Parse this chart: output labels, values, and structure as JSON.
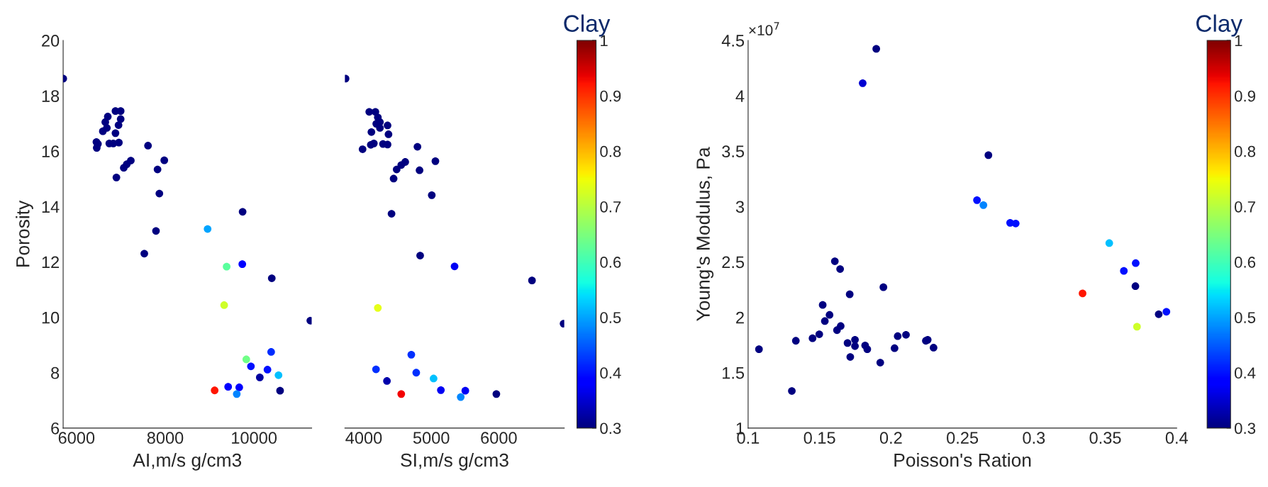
{
  "chart_data": [
    {
      "type": "scatter",
      "xlabel": "AI,m/s g/cm3",
      "ylabel": "Porosity",
      "xlim": [
        5700,
        11300
      ],
      "ylim": [
        6,
        20
      ],
      "xticks": [
        6000,
        8000,
        10000
      ],
      "yticks": [
        6,
        8,
        10,
        12,
        14,
        16,
        18,
        20
      ],
      "clim": [
        0.3,
        1
      ],
      "cticks": [
        0.3,
        0.4,
        0.5,
        0.6,
        0.7,
        0.8,
        0.9,
        1
      ],
      "clabel": "Clay",
      "grid": false,
      "marker": "circle",
      "x": [
        5702,
        6457,
        6484,
        6450,
        6706,
        6650,
        6685,
        6595,
        6879,
        6996,
        6996,
        6948,
        6879,
        6740,
        6830,
        6955,
        7066,
        7135,
        7225,
        6900,
        7612,
        7979,
        7827,
        7868,
        7792,
        7529,
        9744,
        8955,
        9384,
        9737,
        10401,
        9328,
        11270,
        9827,
        9931,
        10387,
        10304,
        10131,
        10553,
        10588,
        9114,
        9418,
        9668,
        9612
      ],
      "values": [
        18.62,
        16.12,
        16.26,
        16.33,
        17.25,
        17.05,
        16.84,
        16.72,
        17.45,
        17.45,
        17.16,
        16.94,
        16.65,
        16.28,
        16.28,
        16.31,
        15.4,
        15.53,
        15.66,
        15.05,
        16.2,
        15.67,
        15.34,
        14.47,
        13.12,
        12.3,
        13.81,
        13.19,
        11.83,
        11.92,
        11.41,
        10.44,
        9.88,
        8.48,
        8.23,
        8.75,
        8.11,
        7.83,
        7.91,
        7.35,
        7.36,
        7.49,
        7.47,
        7.23
      ],
      "cvalues": [
        0.3,
        0.3,
        0.3,
        0.3,
        0.3,
        0.3,
        0.3,
        0.3,
        0.3,
        0.3,
        0.3,
        0.3,
        0.3,
        0.3,
        0.3,
        0.3,
        0.3,
        0.3,
        0.3,
        0.3,
        0.3,
        0.3,
        0.3,
        0.3,
        0.3,
        0.3,
        0.3,
        0.5,
        0.62,
        0.38,
        0.3,
        0.72,
        0.3,
        0.64,
        0.4,
        0.42,
        0.4,
        0.32,
        0.52,
        0.3,
        0.92,
        0.38,
        0.38,
        0.48
      ]
    },
    {
      "type": "scatter",
      "xlabel": "SI,m/s g/cm3",
      "xlim": [
        3720,
        6970
      ],
      "ylim": [
        6,
        20
      ],
      "xticks": [
        4000,
        5000,
        6000
      ],
      "tick_labels": "x",
      "grid": false,
      "marker": "circle",
      "x": [
        3730,
        4081,
        4172,
        4208,
        4239,
        4185,
        4352,
        4239,
        4113,
        4366,
        3982,
        4104,
        4149,
        4284,
        4352,
        4795,
        5061,
        4614,
        4555,
        4487,
        4826,
        4442,
        5007,
        4411,
        4835,
        5345,
        6492,
        4208,
        6960,
        4704,
        4181,
        4777,
        4343,
        5034,
        4555,
        5142,
        5504,
        5436,
        5964
      ],
      "values": [
        18.62,
        17.42,
        17.42,
        17.22,
        17.05,
        16.99,
        16.93,
        16.84,
        16.69,
        16.61,
        16.07,
        16.23,
        16.28,
        16.26,
        16.24,
        16.16,
        15.64,
        15.61,
        15.5,
        15.34,
        15.31,
        15.01,
        14.41,
        13.74,
        12.23,
        11.84,
        11.33,
        10.34,
        9.77,
        8.65,
        8.12,
        8.0,
        7.7,
        7.79,
        7.23,
        7.37,
        7.35,
        7.12,
        7.23
      ],
      "colors": [
        "#00007f",
        "#00007f",
        "#00007f",
        "#00007f",
        "#00007f",
        "#00007f",
        "#00007f",
        "#00007f",
        "#00007f",
        "#00007f",
        "#00007f",
        "#00007f",
        "#00007f",
        "#00007f",
        "#00007f",
        "#00007f",
        "#00007f",
        "#00007f",
        "#00007f",
        "#00007f",
        "#00007f",
        "#00007f",
        "#00007f",
        "#00007f",
        "#00007f",
        "#0000f4",
        "#00007f",
        "#e6ff1a",
        "#00007f",
        "#002fff",
        "#002fff",
        "#002fff",
        "#0000ab",
        "#00c1ff",
        "#f30000",
        "#0000f4",
        "#0000f4",
        "#0087ff",
        "#00007f"
      ]
    },
    {
      "type": "scatter",
      "xlabel": "Poisson's Ration",
      "ylabel": "Young's Modulus, Pa",
      "xlim": [
        0.1,
        0.4
      ],
      "ylim": [
        1,
        4.5
      ],
      "xticks": [
        0.1,
        0.15,
        0.2,
        0.25,
        0.3,
        0.35,
        0.4
      ],
      "yticks": [
        1,
        1.5,
        2,
        2.5,
        3,
        3.5,
        4,
        4.5
      ],
      "clim": [
        0.3,
        1
      ],
      "cticks": [
        0.3,
        0.4,
        0.5,
        0.6,
        0.7,
        0.8,
        0.9,
        1
      ],
      "clabel": "Clay",
      "annotations": [
        "×10$^{7}$"
      ],
      "grid": false,
      "marker": "circle",
      "x": [
        0.1897,
        0.1802,
        0.2682,
        0.2602,
        0.2647,
        0.2834,
        0.2873,
        0.1607,
        0.1644,
        0.1947,
        0.1711,
        0.1522,
        0.157,
        0.1537,
        0.1648,
        0.1622,
        0.1498,
        0.1451,
        0.1334,
        0.1076,
        0.1306,
        0.1696,
        0.1748,
        0.1748,
        0.1715,
        0.1819,
        0.1834,
        0.1925,
        0.2025,
        0.2047,
        0.2105,
        0.2244,
        0.2257,
        0.2298,
        0.3341,
        0.3528,
        0.3713,
        0.363,
        0.3711,
        0.3874,
        0.3928,
        0.3722
      ],
      "values": [
        4.424,
        4.114,
        3.464,
        3.058,
        3.013,
        2.853,
        2.847,
        2.506,
        2.436,
        2.272,
        2.208,
        2.112,
        2.022,
        1.966,
        1.921,
        1.884,
        1.847,
        1.811,
        1.788,
        1.712,
        1.335,
        1.768,
        1.797,
        1.74,
        1.642,
        1.746,
        1.712,
        1.591,
        1.721,
        1.83,
        1.842,
        1.788,
        1.797,
        1.726,
        2.216,
        2.67,
        2.489,
        2.419,
        2.281,
        2.028,
        2.05,
        1.915
      ],
      "cvalues": [
        0.3,
        0.35,
        0.3,
        0.4,
        0.48,
        0.4,
        0.4,
        0.3,
        0.3,
        0.3,
        0.3,
        0.3,
        0.3,
        0.3,
        0.3,
        0.3,
        0.3,
        0.3,
        0.3,
        0.3,
        0.3,
        0.3,
        0.3,
        0.3,
        0.3,
        0.3,
        0.3,
        0.3,
        0.3,
        0.3,
        0.3,
        0.3,
        0.3,
        0.3,
        0.92,
        0.52,
        0.4,
        0.4,
        0.3,
        0.3,
        0.4,
        0.72
      ]
    }
  ]
}
